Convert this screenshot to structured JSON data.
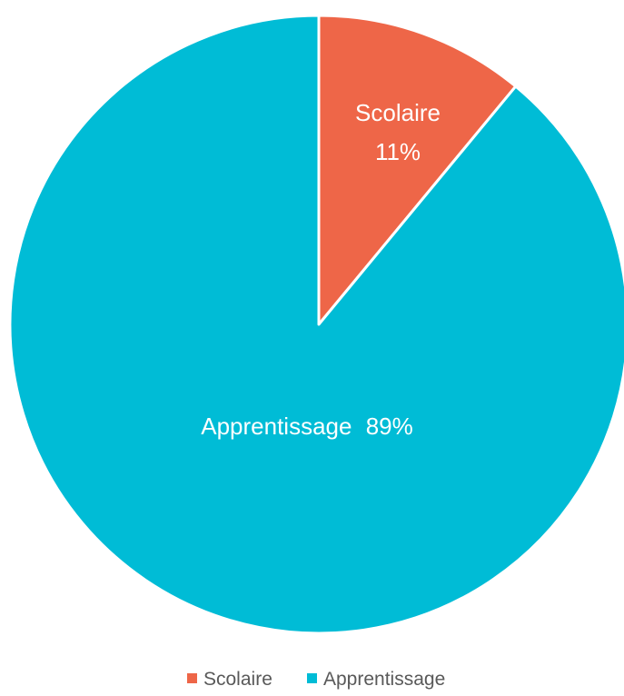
{
  "chart_data": {
    "type": "pie",
    "title": "",
    "slices": [
      {
        "name": "Scolaire",
        "value": 11,
        "label": "Scolaire",
        "percent_label": "11%",
        "color": "#EE6648"
      },
      {
        "name": "Apprentissage",
        "value": 89,
        "label": "Apprentissage",
        "percent_label": "89%",
        "color": "#00BCD6"
      }
    ],
    "legend": {
      "position": "bottom",
      "items": [
        "Scolaire",
        "Apprentissage"
      ]
    }
  }
}
